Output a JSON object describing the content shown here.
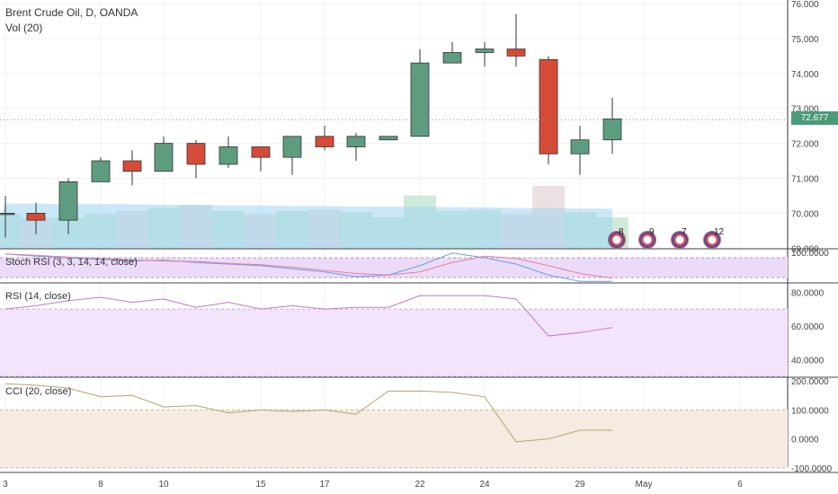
{
  "header": {
    "title": "Brent Crude Oil, D, OANDA",
    "volume_label": "Vol (20)"
  },
  "last_price": "72.677",
  "colors": {
    "up": "#5e9c80",
    "down": "#d64a38",
    "volume_up": "#c8e6d4",
    "volume_down": "#e9dcdc",
    "volume_ma": "#9ed5f2",
    "stoch_bg": "#ecdbf8",
    "rsi_bg": "#f1e4fb",
    "cci_bg": "#f5ebe1",
    "rsi_line": "#c377c0",
    "cci_line": "#b5a36a"
  },
  "event_markers": [
    {
      "icon": "us-flag-icon",
      "count": "8"
    },
    {
      "icon": "us-flag-icon",
      "count": "9"
    },
    {
      "icon": "us-flag-icon",
      "count": "7"
    },
    {
      "icon": "us-flag-icon",
      "count": "12"
    }
  ],
  "chart_data": {
    "type": "candlestick",
    "x_tick_labels": [
      "3",
      "8",
      "10",
      "15",
      "17",
      "22",
      "24",
      "29",
      "May",
      "6"
    ],
    "y_ticks": [
      "76.000",
      "75.000",
      "74.000",
      "73.000",
      "72.000",
      "71.000",
      "70.000",
      "69.000"
    ],
    "ylim": [
      69.0,
      76.0
    ],
    "candles": [
      {
        "open": 70.0,
        "high": 70.5,
        "low": 69.3,
        "close": 70.0
      },
      {
        "open": 70.0,
        "high": 70.3,
        "low": 69.4,
        "close": 69.8
      },
      {
        "open": 69.8,
        "high": 71.0,
        "low": 69.4,
        "close": 70.9
      },
      {
        "open": 70.9,
        "high": 71.6,
        "low": 70.9,
        "close": 71.5
      },
      {
        "open": 71.5,
        "high": 71.8,
        "low": 70.8,
        "close": 71.2
      },
      {
        "open": 71.2,
        "high": 72.2,
        "low": 71.2,
        "close": 72.0
      },
      {
        "open": 72.0,
        "high": 72.1,
        "low": 71.0,
        "close": 71.4
      },
      {
        "open": 71.4,
        "high": 72.2,
        "low": 71.3,
        "close": 71.9
      },
      {
        "open": 71.9,
        "high": 71.9,
        "low": 71.2,
        "close": 71.6
      },
      {
        "open": 71.6,
        "high": 72.2,
        "low": 71.1,
        "close": 72.2
      },
      {
        "open": 72.2,
        "high": 72.5,
        "low": 71.8,
        "close": 71.9
      },
      {
        "open": 71.9,
        "high": 72.3,
        "low": 71.5,
        "close": 72.2
      },
      {
        "open": 72.1,
        "high": 72.2,
        "low": 72.1,
        "close": 72.2
      },
      {
        "open": 72.2,
        "high": 74.7,
        "low": 72.2,
        "close": 74.3
      },
      {
        "open": 74.3,
        "high": 74.9,
        "low": 74.3,
        "close": 74.6
      },
      {
        "open": 74.6,
        "high": 74.9,
        "low": 74.2,
        "close": 74.7
      },
      {
        "open": 74.7,
        "high": 75.7,
        "low": 74.2,
        "close": 74.5
      },
      {
        "open": 74.4,
        "high": 74.5,
        "low": 71.4,
        "close": 71.7
      },
      {
        "open": 71.7,
        "high": 72.5,
        "low": 71.1,
        "close": 72.1
      },
      {
        "open": 72.1,
        "high": 73.3,
        "low": 71.7,
        "close": 72.7
      }
    ],
    "volume": [
      0.55,
      0.5,
      0.5,
      0.55,
      0.6,
      0.65,
      0.7,
      0.6,
      0.55,
      0.6,
      0.62,
      0.58,
      0.5,
      0.85,
      0.6,
      0.62,
      0.55,
      1.0,
      0.58,
      0.5
    ],
    "volume_ma": [
      0.72,
      0.72,
      0.71,
      0.71,
      0.71,
      0.7,
      0.7,
      0.69,
      0.69,
      0.68,
      0.68,
      0.67,
      0.67,
      0.67,
      0.66,
      0.66,
      0.65,
      0.65,
      0.64,
      0.64
    ],
    "stoch_rsi": {
      "label": "Stoch RSI (3, 3, 14, 14, close)",
      "y_ticks": [
        "100.0000"
      ],
      "k": [
        92,
        85,
        80,
        75,
        70,
        72,
        65,
        60,
        55,
        45,
        35,
        20,
        25,
        55,
        95,
        80,
        60,
        25,
        5,
        5
      ],
      "d": [
        92,
        88,
        82,
        78,
        73,
        70,
        68,
        62,
        58,
        50,
        40,
        30,
        25,
        35,
        65,
        85,
        78,
        55,
        30,
        15
      ]
    },
    "rsi": {
      "label": "RSI (14, close)",
      "y_ticks": [
        "80.0000",
        "60.0000",
        "40.0000"
      ],
      "ylim": [
        30,
        85
      ],
      "values": [
        70,
        72,
        75,
        77,
        74,
        76,
        71,
        74,
        70,
        72,
        70,
        71,
        71,
        78,
        78,
        78,
        76,
        54,
        56,
        59
      ]
    },
    "cci": {
      "label": "CCI (20, close)",
      "y_ticks": [
        "200.0000",
        "100.0000",
        "0.0000",
        "-100.0000"
      ],
      "ylim": [
        -110,
        220
      ],
      "values": [
        190,
        185,
        175,
        145,
        150,
        110,
        115,
        90,
        100,
        95,
        100,
        85,
        165,
        165,
        160,
        145,
        -10,
        0,
        30,
        30
      ]
    }
  }
}
